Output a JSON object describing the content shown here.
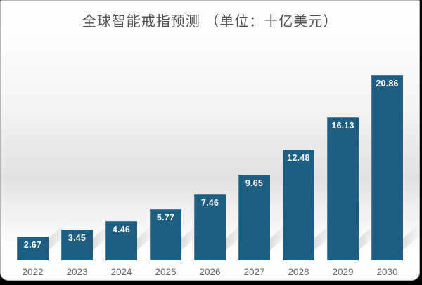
{
  "chart_data": {
    "type": "bar",
    "title": "全球智能戒指预测 （单位：十亿美元）",
    "categories": [
      "2022",
      "2023",
      "2024",
      "2025",
      "2026",
      "2027",
      "2028",
      "2029",
      "2030"
    ],
    "values": [
      2.67,
      3.45,
      4.46,
      5.77,
      7.46,
      9.65,
      12.48,
      16.13,
      20.86
    ],
    "value_labels": [
      "2.67",
      "3.45",
      "4.46",
      "5.77",
      "7.46",
      "9.65",
      "12.48",
      "16.13",
      "20.86"
    ],
    "xlabel": "",
    "ylabel": "",
    "ylim": [
      0,
      21
    ],
    "grid": false,
    "legend": false,
    "value_labels_position": "inside-top",
    "bar_color": "#1d5e82",
    "value_label_color": "#ffffff",
    "tick_label_color": "#666666",
    "title_color": "#4f4f4f"
  }
}
